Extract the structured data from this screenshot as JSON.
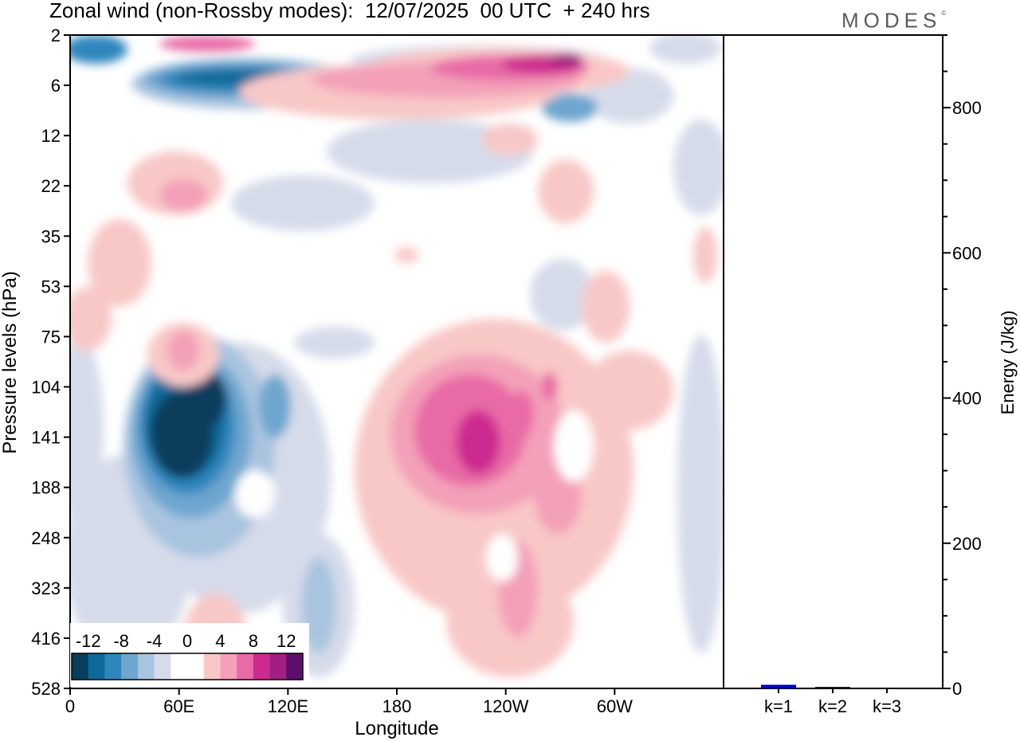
{
  "header": {
    "title": "Zonal wind (non-Rossby modes):  12/07/2025  00 UTC  + 240 hrs",
    "brand": "MODES",
    "brand_mark": "©"
  },
  "chart_data": [
    {
      "type": "heatmap",
      "title": "Zonal wind (non-Rossby modes):  12/07/2025  00 UTC  + 240 hrs",
      "xlabel": "Longitude",
      "ylabel": "Pressure levels (hPa)",
      "x_ticks": [
        "0",
        "60E",
        "120E",
        "180",
        "120W",
        "60W"
      ],
      "y_ticks": [
        "2",
        "6",
        "12",
        "22",
        "35",
        "53",
        "75",
        "104",
        "141",
        "188",
        "248",
        "323",
        "416",
        "528"
      ],
      "colorbar": {
        "labels": [
          "-12",
          "-8",
          "-4",
          "0",
          "4",
          "8",
          "12"
        ],
        "levels": [
          -14,
          -12,
          -10,
          -8,
          -6,
          -4,
          -2,
          0,
          2,
          4,
          6,
          8,
          10,
          12,
          14
        ],
        "colors": [
          "#083e5c",
          "#0d6a9a",
          "#2e86bd",
          "#6ea6cf",
          "#a9c4df",
          "#d6dbea",
          "#ffffff",
          "#ffffff",
          "#f8c8c6",
          "#f3a0b8",
          "#e86aa6",
          "#cc2a8e",
          "#a01f80",
          "#5e0e6e"
        ]
      },
      "features": [
        {
          "feature": "negative upper jet",
          "lon": [
            10,
            125
          ],
          "level_hPa": [
            2,
            10
          ],
          "min_value": -12
        },
        {
          "feature": "positive upper jet",
          "lon": [
            60,
            245
          ],
          "level_hPa": [
            4,
            12
          ],
          "max_value": 12
        },
        {
          "feature": "negative core",
          "lon": [
            40,
            75
          ],
          "level_hPa": [
            104,
            188
          ],
          "min_value": -14
        },
        {
          "feature": "positive cell",
          "lon": [
            190,
            235
          ],
          "level_hPa": [
            104,
            248
          ],
          "max_value": 10
        }
      ]
    },
    {
      "type": "bar",
      "ylabel": "Energy (J/kg)",
      "categories": [
        "k=1",
        "k=2",
        "k=3"
      ],
      "values": [
        5,
        2,
        1
      ],
      "ylim": [
        0,
        900
      ],
      "y_ticks": [
        "0",
        "200",
        "400",
        "600",
        "800"
      ],
      "bar_color": "#0000c8"
    }
  ]
}
